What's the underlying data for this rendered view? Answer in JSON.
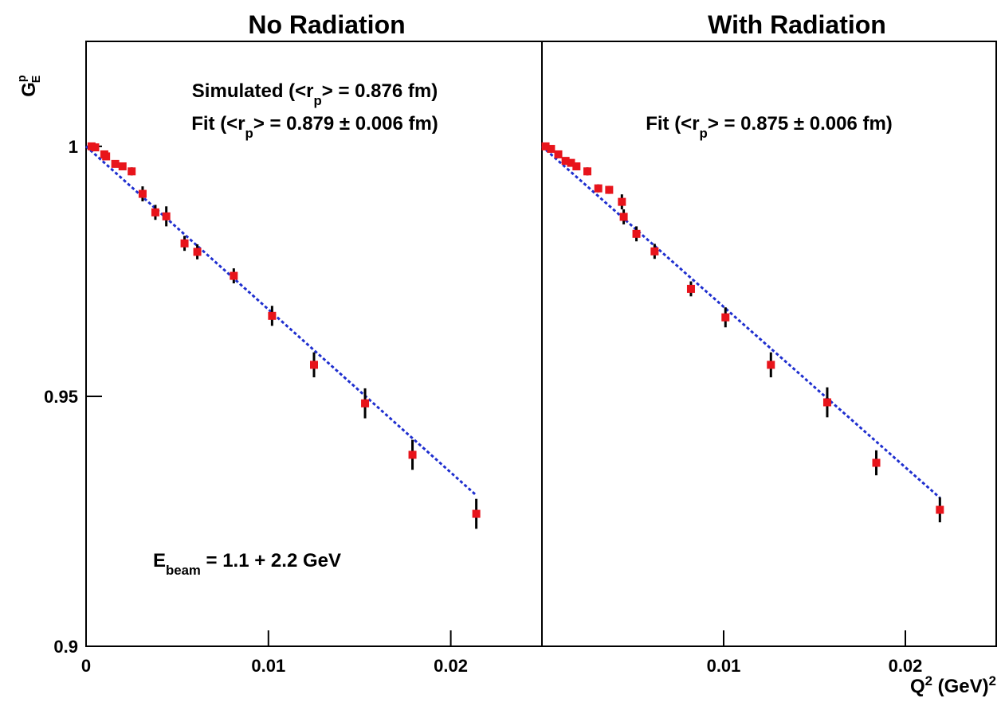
{
  "chart_data": [
    {
      "type": "scatter",
      "title": "No Radiation",
      "y_label": {
        "base": "G",
        "sup": "p",
        "sub": "E"
      },
      "annotations": [
        [
          "Simulated (<r",
          "p",
          "> = 0.876 fm)"
        ],
        [
          "Fit (<r",
          "p",
          "> = 0.879 ± 0.006 fm)"
        ],
        [
          "E",
          "beam",
          " = 1.1 + 2.2 GeV"
        ]
      ],
      "xlim": [
        0,
        0.025
      ],
      "ylim": [
        0.9,
        1.021
      ],
      "xticks": [
        0,
        0.01,
        0.02
      ],
      "yticks": [
        0.9,
        0.95,
        1
      ],
      "series": [
        {
          "color": "#e8141b",
          "x": [
            0.0003,
            0.0005,
            0.001,
            0.0011,
            0.0016,
            0.002,
            0.0025,
            0.0031,
            0.0038,
            0.0044,
            0.0054,
            0.0061,
            0.0081,
            0.0102,
            0.0125,
            0.0153,
            0.0179,
            0.0214
          ],
          "values": [
            1.0,
            0.9998,
            0.9984,
            0.998,
            0.9965,
            0.996,
            0.995,
            0.9905,
            0.9868,
            0.986,
            0.9806,
            0.9789,
            0.9741,
            0.9661,
            0.9563,
            0.9486,
            0.9383,
            0.9265
          ],
          "errors": [
            0.0005,
            0.0005,
            0.0005,
            0.0005,
            0.0005,
            0.0005,
            0.0008,
            0.0015,
            0.0015,
            0.002,
            0.0015,
            0.0015,
            0.0015,
            0.002,
            0.0025,
            0.003,
            0.003,
            0.003
          ]
        }
      ],
      "fit": {
        "color": "#1f2fcf",
        "x": [
          0,
          0.0214
        ],
        "values": [
          1.0,
          0.9302
        ]
      }
    },
    {
      "type": "scatter",
      "title": "With Radiation",
      "x_label": [
        "Q",
        "2",
        " (GeV)",
        "2"
      ],
      "annotations": [
        [
          "Fit (<r",
          "p",
          "> = 0.875 ± 0.006 fm)"
        ]
      ],
      "xlim": [
        0,
        0.025
      ],
      "ylim": [
        0.9,
        1.021
      ],
      "xticks": [
        0.01,
        0.02
      ],
      "series": [
        {
          "color": "#e8141b",
          "x": [
            0.0002,
            0.0005,
            0.0009,
            0.0013,
            0.0016,
            0.0019,
            0.0025,
            0.0031,
            0.0037,
            0.0044,
            0.0045,
            0.0052,
            0.0062,
            0.0082,
            0.0101,
            0.0126,
            0.0157,
            0.0184,
            0.0219
          ],
          "values": [
            1.0,
            0.9995,
            0.9984,
            0.9971,
            0.9967,
            0.996,
            0.995,
            0.9916,
            0.9913,
            0.9889,
            0.9859,
            0.9825,
            0.979,
            0.9715,
            0.9658,
            0.9563,
            0.9488,
            0.9367,
            0.9273
          ],
          "errors": [
            0.0005,
            0.0005,
            0.0005,
            0.0005,
            0.0005,
            0.0005,
            0.0008,
            0.0008,
            0.0008,
            0.0015,
            0.0015,
            0.0015,
            0.0015,
            0.0015,
            0.002,
            0.0025,
            0.003,
            0.0025,
            0.0025
          ]
        }
      ],
      "fit": {
        "color": "#1f2fcf",
        "x": [
          0,
          0.0219
        ],
        "values": [
          1.0,
          0.9297
        ]
      }
    }
  ]
}
